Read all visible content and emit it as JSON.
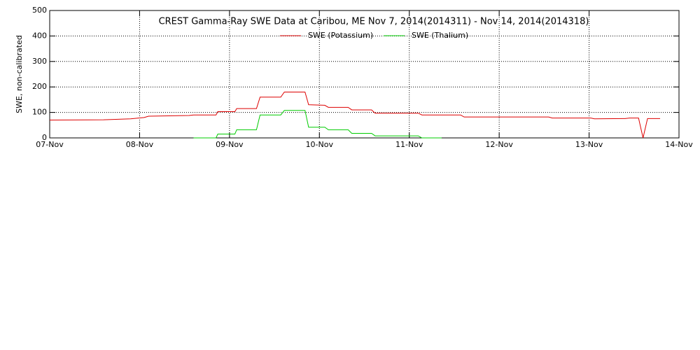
{
  "chart_data": {
    "type": "line",
    "title": "CREST Gamma-Ray SWE Data at Caribou, ME   Nov  7, 2014(2014311) - Nov 14, 2014(2014318)",
    "y_label": "SWE, non-calibrated",
    "xlim": [
      0,
      7
    ],
    "xticks": [
      {
        "value": 0,
        "label": "07-Nov"
      },
      {
        "value": 1,
        "label": "08-Nov"
      },
      {
        "value": 2,
        "label": "09-Nov"
      },
      {
        "value": 3,
        "label": "10-Nov"
      },
      {
        "value": 4,
        "label": "11-Nov"
      },
      {
        "value": 5,
        "label": "12-Nov"
      },
      {
        "value": 6,
        "label": "13-Nov"
      },
      {
        "value": 7,
        "label": "14-Nov"
      }
    ],
    "ylim": [
      0,
      500
    ],
    "yticks": [
      0,
      100,
      200,
      300,
      400,
      500
    ],
    "grid": true,
    "series": [
      {
        "name": "SWE (Potassium)",
        "color": "#dd0000",
        "x": [
          0,
          0.6,
          0.9,
          1.05,
          1.1,
          1.55,
          1.6,
          1.85,
          1.87,
          2.06,
          2.08,
          2.3,
          2.34,
          2.57,
          2.61,
          2.84,
          2.88,
          3.06,
          3.1,
          3.32,
          3.36,
          3.58,
          3.62,
          4.1,
          4.14,
          4.57,
          4.61,
          5.55,
          5.59,
          6.02,
          6.06,
          6.4,
          6.45,
          6.55,
          6.6,
          6.65,
          6.79
        ],
        "values": [
          70,
          71,
          75,
          80,
          85,
          88,
          90,
          90,
          103,
          103,
          115,
          115,
          160,
          160,
          180,
          180,
          130,
          128,
          120,
          120,
          110,
          110,
          97,
          97,
          90,
          90,
          82,
          82,
          78,
          78,
          75,
          76,
          78,
          78,
          0,
          76,
          76
        ]
      },
      {
        "name": "SWE (Thalium)",
        "color": "#00cc00",
        "x": [
          1.6,
          1.85,
          1.87,
          2.06,
          2.08,
          2.3,
          2.34,
          2.57,
          2.61,
          2.84,
          2.88,
          3.06,
          3.1,
          3.32,
          3.36,
          3.58,
          3.62,
          4.1,
          4.14,
          4.36
        ],
        "values": [
          0,
          0,
          15,
          15,
          32,
          32,
          90,
          90,
          108,
          108,
          42,
          42,
          32,
          32,
          18,
          18,
          8,
          8,
          0,
          0
        ]
      }
    ]
  }
}
